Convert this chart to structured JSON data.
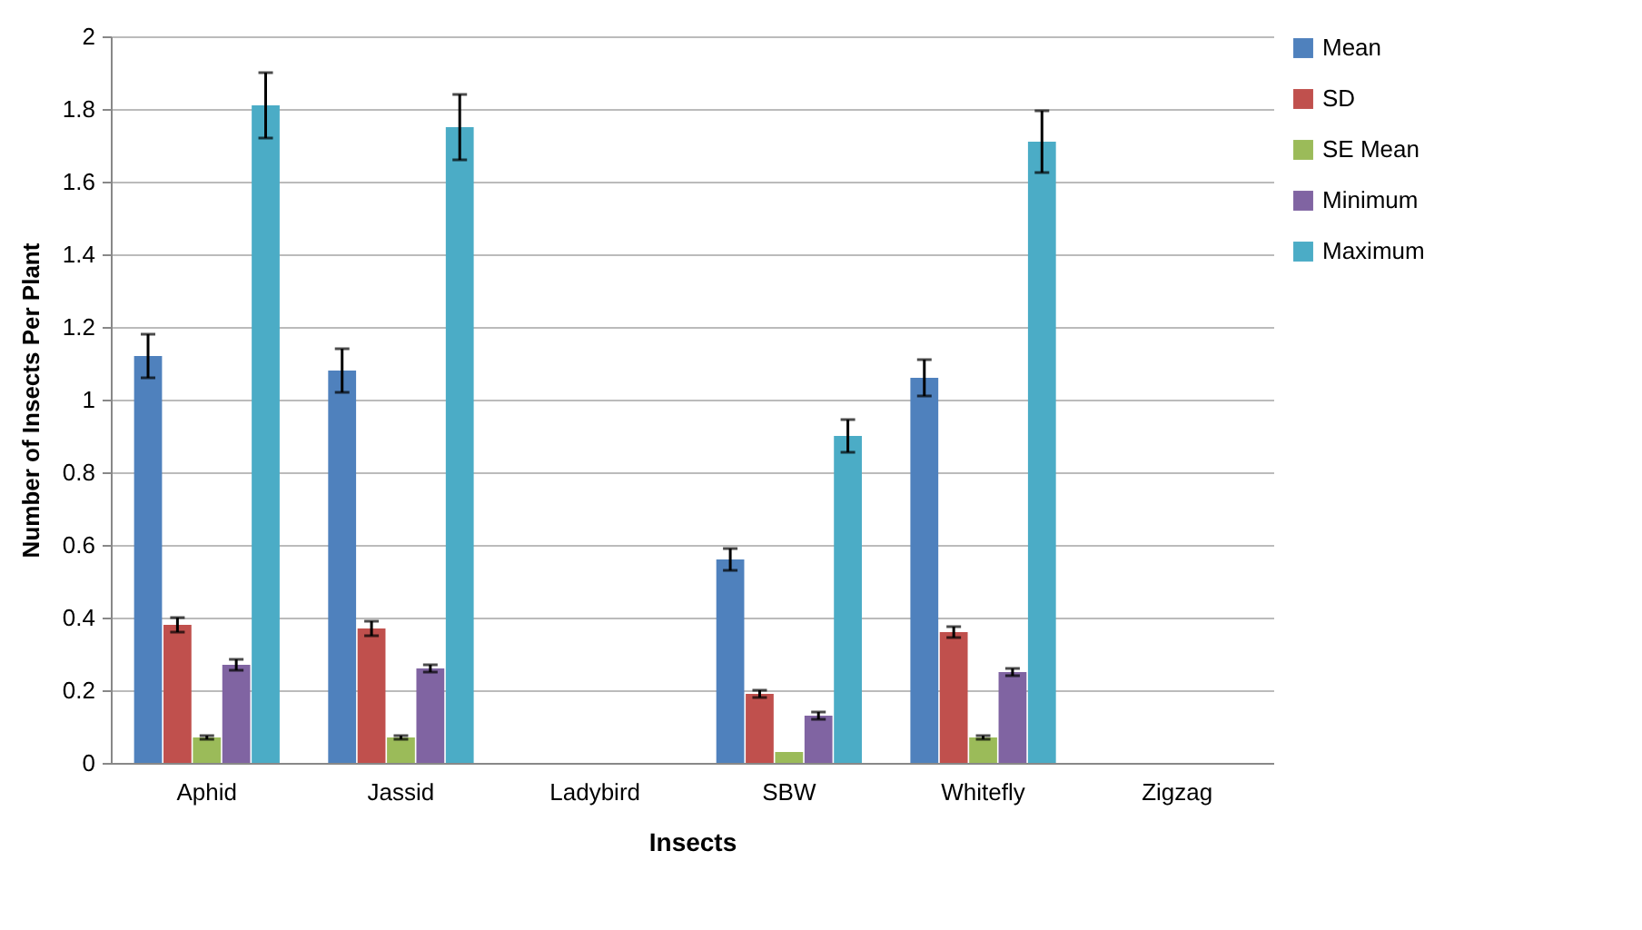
{
  "chart_data": {
    "type": "bar",
    "xlabel": "Insects",
    "ylabel": "Number of Insects Per Plant",
    "categories": [
      "Aphid",
      "Jassid",
      "Ladybird",
      "SBW",
      "Whitefly",
      "Zigzag"
    ],
    "series": [
      {
        "name": "Mean",
        "color": "#4f81bd",
        "values": [
          1.12,
          1.08,
          null,
          0.56,
          1.06,
          null
        ],
        "errors": [
          0.06,
          0.06,
          null,
          0.03,
          0.05,
          null
        ]
      },
      {
        "name": "SD",
        "color": "#c0504d",
        "values": [
          0.38,
          0.37,
          null,
          0.19,
          0.36,
          null
        ],
        "errors": [
          0.02,
          0.02,
          null,
          0.01,
          0.015,
          null
        ]
      },
      {
        "name": "SE Mean",
        "color": "#9bbb59",
        "values": [
          0.07,
          0.07,
          null,
          0.03,
          0.07,
          null
        ],
        "errors": [
          0.005,
          0.005,
          null,
          null,
          0.005,
          null
        ]
      },
      {
        "name": "Minimum",
        "color": "#8064a2",
        "values": [
          0.27,
          0.26,
          null,
          0.13,
          0.25,
          null
        ],
        "errors": [
          0.015,
          0.01,
          null,
          0.01,
          0.01,
          null
        ]
      },
      {
        "name": "Maximum",
        "color": "#4bacc6",
        "values": [
          1.81,
          1.75,
          null,
          0.9,
          1.71,
          null
        ],
        "errors": [
          0.09,
          0.09,
          null,
          0.045,
          0.085,
          null
        ]
      }
    ],
    "ylim": [
      0,
      2
    ],
    "yticks": [
      0,
      0.2,
      0.4,
      0.6,
      0.8,
      1,
      1.2,
      1.4,
      1.6,
      1.8,
      2
    ],
    "grid": "y",
    "legend": "right"
  }
}
